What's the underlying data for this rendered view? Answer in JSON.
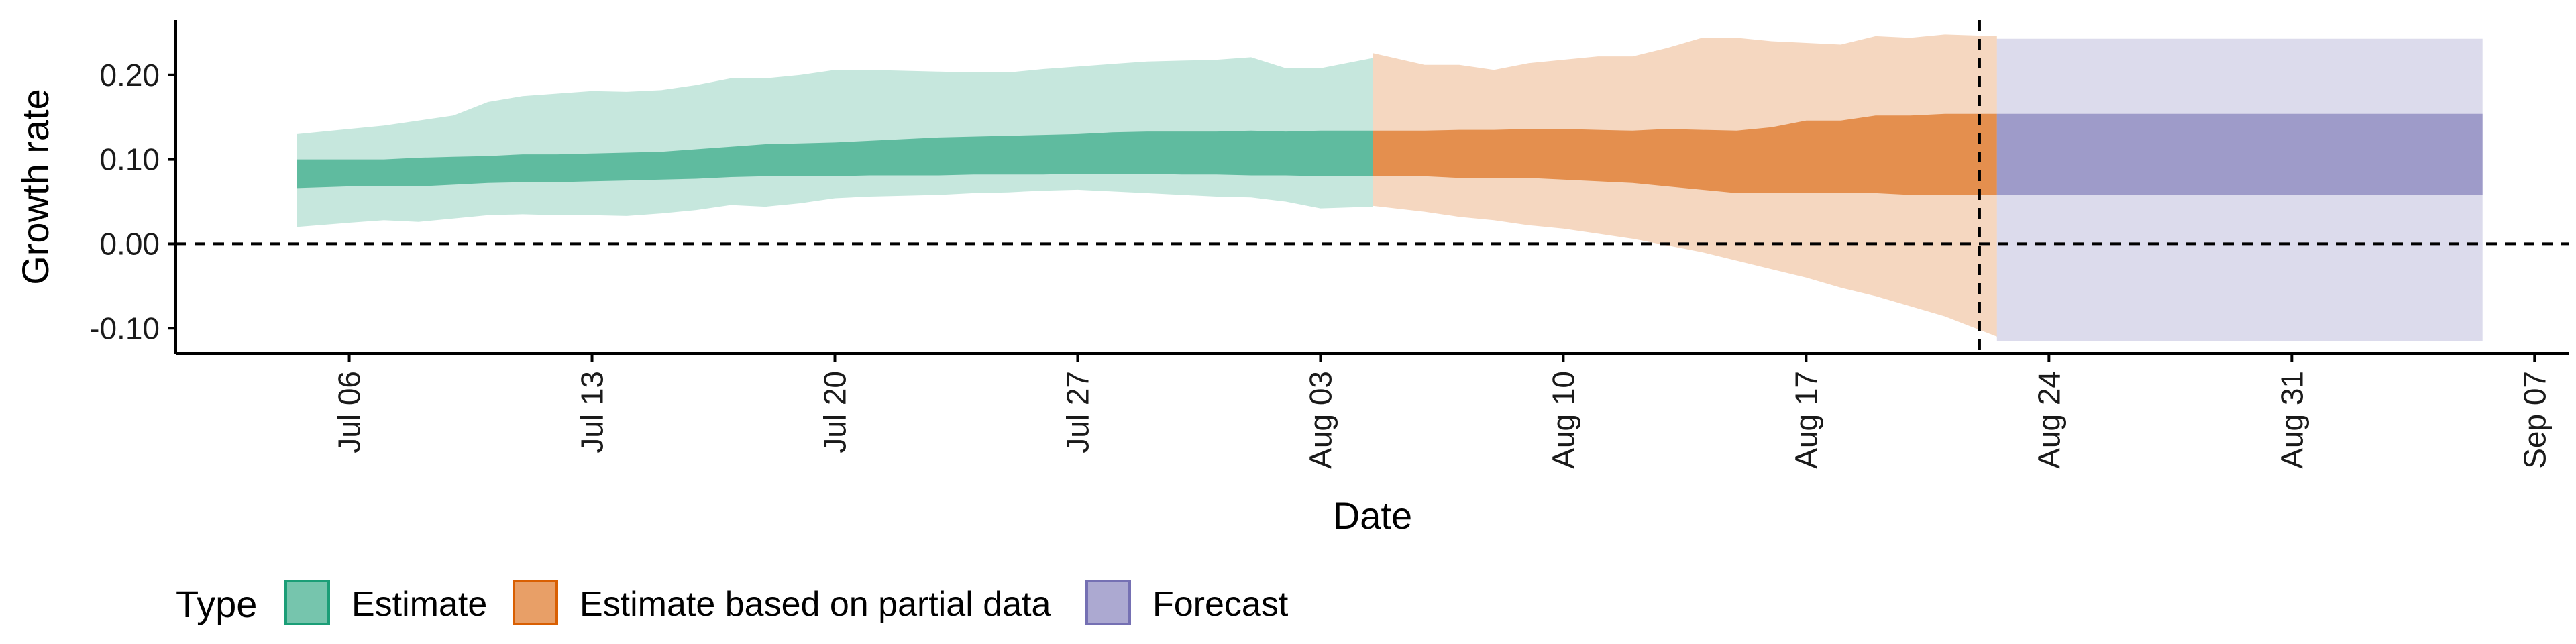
{
  "chart_data": {
    "type": "area",
    "xlabel": "Date",
    "ylabel": "Growth rate",
    "x_ticks": [
      "Jul 06",
      "Jul 13",
      "Jul 20",
      "Jul 27",
      "Aug 03",
      "Aug 10",
      "Aug 17",
      "Aug 24",
      "Aug 31",
      "Sep 07"
    ],
    "y_ticks": [
      "-0.10",
      "0.00",
      "0.10",
      "0.20"
    ],
    "xlim": [
      "2020-07-01",
      "2020-09-08"
    ],
    "ylim": [
      -0.13,
      0.265
    ],
    "grid": false,
    "reference_lines": [
      {
        "axis": "y",
        "value": 0.0,
        "style": "dashed"
      },
      {
        "axis": "x",
        "value": "2020-08-22",
        "style": "dashed"
      }
    ],
    "legend": {
      "title": "Type",
      "position": "bottom-left",
      "entries": [
        "Estimate",
        "Estimate based on partial data",
        "Forecast"
      ]
    },
    "colors": {
      "Estimate": "#1b9e77",
      "Estimate based on partial data": "#d95f02",
      "Forecast": "#7570b3"
    },
    "series": [
      {
        "name": "Estimate",
        "dates": [
          "2020-07-05",
          "2020-07-06",
          "2020-07-07",
          "2020-07-08",
          "2020-07-09",
          "2020-07-10",
          "2020-07-11",
          "2020-07-12",
          "2020-07-13",
          "2020-07-14",
          "2020-07-15",
          "2020-07-16",
          "2020-07-17",
          "2020-07-18",
          "2020-07-19",
          "2020-07-20",
          "2020-07-21",
          "2020-07-22",
          "2020-07-23",
          "2020-07-24",
          "2020-07-25",
          "2020-07-26",
          "2020-07-27",
          "2020-07-28",
          "2020-07-29",
          "2020-07-30",
          "2020-07-31",
          "2020-08-01",
          "2020-08-02",
          "2020-08-03",
          "2020-08-04"
        ],
        "upper90": [
          0.13,
          0.136,
          0.14,
          0.146,
          0.152,
          0.168,
          0.175,
          0.178,
          0.181,
          0.18,
          0.182,
          0.188,
          0.196,
          0.196,
          0.2,
          0.206,
          0.206,
          0.205,
          0.204,
          0.203,
          0.203,
          0.207,
          0.21,
          0.213,
          0.216,
          0.217,
          0.218,
          0.221,
          0.208,
          0.208,
          0.22
        ],
        "upper50": [
          0.1,
          0.1,
          0.1,
          0.102,
          0.103,
          0.104,
          0.106,
          0.106,
          0.107,
          0.108,
          0.109,
          0.112,
          0.115,
          0.118,
          0.119,
          0.12,
          0.122,
          0.124,
          0.126,
          0.127,
          0.128,
          0.129,
          0.13,
          0.132,
          0.133,
          0.133,
          0.133,
          0.134,
          0.133,
          0.134,
          0.134
        ],
        "lower50": [
          0.066,
          0.068,
          0.068,
          0.068,
          0.07,
          0.072,
          0.073,
          0.073,
          0.074,
          0.075,
          0.076,
          0.077,
          0.079,
          0.08,
          0.08,
          0.08,
          0.081,
          0.081,
          0.081,
          0.082,
          0.082,
          0.082,
          0.083,
          0.083,
          0.083,
          0.082,
          0.082,
          0.081,
          0.081,
          0.08,
          0.08
        ],
        "lower90": [
          0.02,
          0.025,
          0.028,
          0.026,
          0.03,
          0.034,
          0.035,
          0.034,
          0.034,
          0.033,
          0.036,
          0.04,
          0.046,
          0.044,
          0.048,
          0.054,
          0.056,
          0.057,
          0.058,
          0.06,
          0.061,
          0.063,
          0.064,
          0.062,
          0.06,
          0.058,
          0.056,
          0.055,
          0.05,
          0.042,
          0.044
        ]
      },
      {
        "name": "Estimate based on partial data",
        "dates": [
          "2020-08-05",
          "2020-08-06",
          "2020-08-07",
          "2020-08-08",
          "2020-08-09",
          "2020-08-10",
          "2020-08-11",
          "2020-08-12",
          "2020-08-13",
          "2020-08-14",
          "2020-08-15",
          "2020-08-16",
          "2020-08-17",
          "2020-08-18",
          "2020-08-19",
          "2020-08-20",
          "2020-08-21",
          "2020-08-22"
        ],
        "upper90": [
          0.226,
          0.212,
          0.212,
          0.206,
          0.214,
          0.218,
          0.222,
          0.222,
          0.232,
          0.244,
          0.244,
          0.24,
          0.238,
          0.236,
          0.246,
          0.244,
          0.248,
          0.246
        ],
        "upper50": [
          0.134,
          0.134,
          0.135,
          0.135,
          0.136,
          0.136,
          0.135,
          0.134,
          0.136,
          0.135,
          0.134,
          0.138,
          0.146,
          0.146,
          0.152,
          0.152,
          0.154,
          0.154
        ],
        "lower50": [
          0.08,
          0.08,
          0.078,
          0.078,
          0.078,
          0.076,
          0.074,
          0.072,
          0.068,
          0.064,
          0.06,
          0.06,
          0.06,
          0.06,
          0.06,
          0.058,
          0.058,
          0.058
        ],
        "lower90": [
          0.045,
          0.038,
          0.032,
          0.028,
          0.022,
          0.018,
          0.012,
          0.006,
          -0.002,
          -0.01,
          -0.02,
          -0.03,
          -0.04,
          -0.052,
          -0.062,
          -0.074,
          -0.086,
          -0.11
        ]
      },
      {
        "name": "Forecast",
        "dates": [
          "2020-08-23",
          "2020-09-05"
        ],
        "upper90": [
          0.243,
          0.243
        ],
        "upper50": [
          0.154,
          0.154
        ],
        "lower50": [
          0.058,
          0.058
        ],
        "lower90": [
          -0.115,
          -0.115
        ]
      }
    ]
  }
}
